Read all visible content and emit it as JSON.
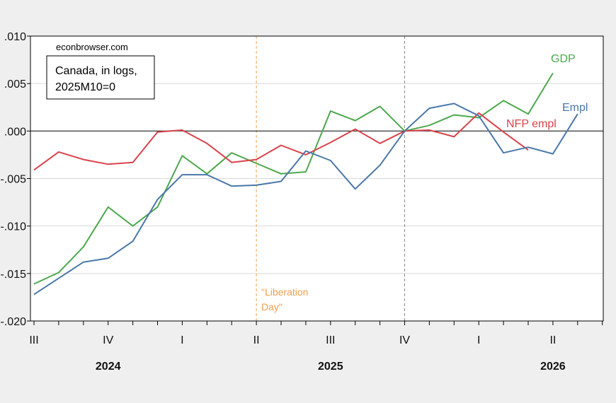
{
  "source": "econbrowser.com",
  "legend_box": {
    "line1": "Canada, in logs,",
    "line2": "2025M10=0"
  },
  "annotation": {
    "line1": "\"Liberation",
    "line2": "Day\""
  },
  "chart_data": {
    "type": "line",
    "title": "",
    "xlabel": "",
    "ylabel": "",
    "x_units": "months since 2024M07",
    "x_range": [
      0,
      23
    ],
    "ylim": [
      -0.02,
      0.01
    ],
    "yticks": [
      0.01,
      0.005,
      0.0,
      -0.005,
      -0.01,
      -0.015,
      -0.02
    ],
    "ytick_labels": [
      ".010",
      ".005",
      ".000",
      "-.005",
      "-.010",
      "-.015",
      "-.020"
    ],
    "xticks": [
      {
        "x": 0,
        "label": "III"
      },
      {
        "x": 3,
        "label": "IV"
      },
      {
        "x": 6,
        "label": "I"
      },
      {
        "x": 9,
        "label": "II"
      },
      {
        "x": 12,
        "label": "III"
      },
      {
        "x": 15,
        "label": "IV"
      },
      {
        "x": 18,
        "label": "I"
      },
      {
        "x": 21,
        "label": "II"
      }
    ],
    "years": [
      {
        "x": 3,
        "label": "2024"
      },
      {
        "x": 12,
        "label": "2025"
      },
      {
        "x": 21,
        "label": "2026"
      }
    ],
    "grid": true,
    "vlines": [
      {
        "x": 9,
        "color": "#f0a050",
        "name": "liberation-day"
      },
      {
        "x": 15,
        "color": "#888888",
        "name": "base-period"
      }
    ],
    "series": [
      {
        "name": "GDP",
        "color": "#4ea84e",
        "x": [
          0,
          1,
          2,
          3,
          4,
          5,
          6,
          7,
          8,
          9,
          10,
          11,
          12,
          13,
          14,
          15,
          16,
          17,
          18,
          19,
          20,
          21
        ],
        "values": [
          -0.0161,
          -0.0149,
          -0.0122,
          -0.008,
          -0.01,
          -0.008,
          -0.0026,
          -0.0045,
          -0.0023,
          -0.0034,
          -0.0045,
          -0.0043,
          0.0021,
          0.0011,
          0.0026,
          0.0,
          0.0006,
          0.0017,
          0.0014,
          0.0032,
          0.0018,
          0.0061
        ]
      },
      {
        "name": "NFP empl",
        "color": "#d9434b",
        "x": [
          0,
          1,
          2,
          3,
          4,
          5,
          6,
          7,
          8,
          9,
          10,
          11,
          12,
          13,
          14,
          15,
          16,
          17,
          18,
          19,
          20
        ],
        "values": [
          -0.0041,
          -0.0022,
          -0.003,
          -0.0035,
          -0.0033,
          -0.0001,
          0.0001,
          -0.0013,
          -0.0033,
          -0.003,
          -0.0015,
          -0.0025,
          -0.0012,
          0.0002,
          -0.0013,
          0.0,
          0.0001,
          -0.0006,
          0.0019,
          -0.0001,
          -0.002
        ]
      },
      {
        "name": "Empl",
        "color": "#4a77a8",
        "x": [
          0,
          1,
          2,
          3,
          4,
          5,
          6,
          7,
          8,
          9,
          10,
          11,
          12,
          13,
          14,
          15,
          16,
          17,
          18,
          19,
          20,
          21,
          22
        ],
        "values": [
          -0.0172,
          -0.0155,
          -0.0138,
          -0.0134,
          -0.0116,
          -0.0072,
          -0.0046,
          -0.0046,
          -0.0058,
          -0.0057,
          -0.0053,
          -0.0021,
          -0.0031,
          -0.0061,
          -0.0036,
          0.0,
          0.0024,
          0.0029,
          0.0016,
          -0.0023,
          -0.0017,
          -0.0024,
          0.0018
        ]
      }
    ]
  }
}
